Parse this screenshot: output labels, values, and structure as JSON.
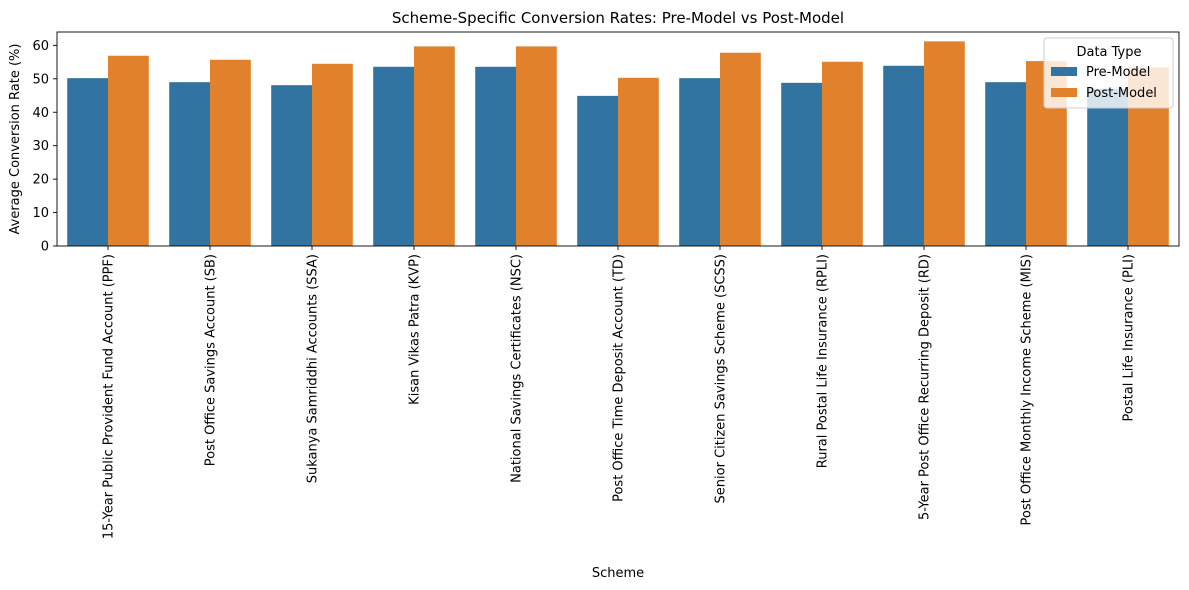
{
  "chart_data": {
    "type": "bar",
    "title": "Scheme-Specific Conversion Rates: Pre-Model vs Post-Model",
    "xlabel": "Scheme",
    "ylabel": "Average Conversion Rate (%)",
    "ylim": [
      0,
      64
    ],
    "yticks": [
      0,
      10,
      20,
      30,
      40,
      50,
      60
    ],
    "grid": false,
    "legend": {
      "title": "Data Type",
      "placement": "top-right"
    },
    "categories": [
      "15-Year Public Provident Fund Account (PPF)",
      "Post Office Savings Account (SB)",
      "Sukanya Samriddhi Accounts (SSA)",
      "Kisan Vikas Patra (KVP)",
      "National Savings Certificates (NSC)",
      "Post Office Time Deposit Account (TD)",
      "Senior Citizen Savings Scheme (SCSS)",
      "Rural Postal Life Insurance (RPLI)",
      "5-Year Post Office Recurring Deposit (RD)",
      "Post Office Monthly Income Scheme (MIS)",
      "Postal Life Insurance (PLI)"
    ],
    "series": [
      {
        "name": "Pre-Model",
        "color": "#3274a1",
        "values": [
          50.2,
          49.0,
          48.1,
          53.6,
          53.6,
          44.9,
          50.2,
          48.8,
          53.9,
          49.0,
          47.0
        ]
      },
      {
        "name": "Post-Model",
        "color": "#e1812c",
        "values": [
          56.9,
          55.7,
          54.5,
          59.7,
          59.7,
          50.3,
          57.8,
          55.1,
          61.2,
          55.3,
          53.4
        ]
      }
    ]
  }
}
